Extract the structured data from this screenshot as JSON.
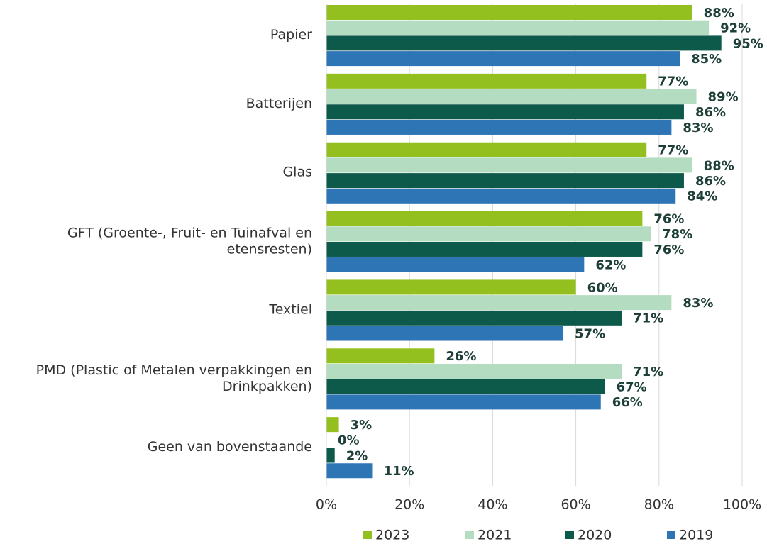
{
  "chart_data": {
    "type": "hbar",
    "categories": [
      "Papier",
      "Batterijen",
      "Glas",
      "GFT (Groente-, Fruit- en Tuinafval en etensresten)",
      "Textiel",
      "PMD (Plastic of Metalen verpakkingen en Drinkpakken)",
      "Geen van bovenstaande"
    ],
    "series": [
      {
        "name": "2023",
        "color": "#93c01f",
        "values": [
          88,
          77,
          77,
          76,
          60,
          26,
          3
        ],
        "value_labels": [
          "88%",
          "77%",
          "77%",
          "76%",
          "60%",
          "26%",
          "3%"
        ]
      },
      {
        "name": "2021",
        "color": "#b3dcc0",
        "values": [
          92,
          89,
          88,
          78,
          83,
          71,
          0
        ],
        "value_labels": [
          "92%",
          "89%",
          "88%",
          "78%",
          "83%",
          "71%",
          "0%"
        ]
      },
      {
        "name": "2020",
        "color": "#0e5a4a",
        "values": [
          95,
          86,
          86,
          76,
          71,
          67,
          2
        ],
        "value_labels": [
          "95%",
          "86%",
          "86%",
          "76%",
          "71%",
          "67%",
          "2%"
        ]
      },
      {
        "name": "2019",
        "color": "#2e75b6",
        "values": [
          85,
          83,
          84,
          62,
          57,
          66,
          11
        ],
        "value_labels": [
          "85%",
          "83%",
          "84%",
          "62%",
          "57%",
          "66%",
          "11%"
        ]
      }
    ],
    "xlim": [
      0,
      100
    ],
    "xticks": [
      {
        "value": 0,
        "label": "0%"
      },
      {
        "value": 20,
        "label": "20%"
      },
      {
        "value": 40,
        "label": "40%"
      },
      {
        "value": 60,
        "label": "60%"
      },
      {
        "value": 80,
        "label": "80%"
      },
      {
        "value": 100,
        "label": "100%"
      }
    ],
    "grid": true,
    "legend": "bottom"
  }
}
